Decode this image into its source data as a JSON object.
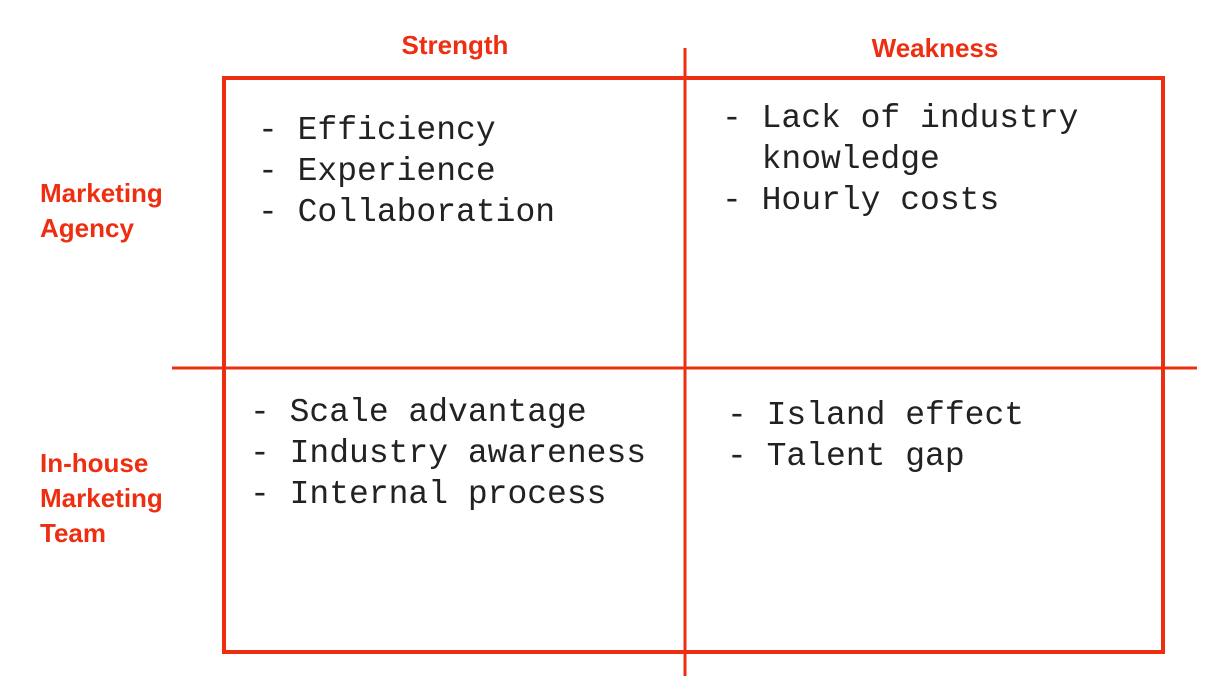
{
  "columns": [
    "Strength",
    "Weakness"
  ],
  "rows": [
    {
      "label": [
        "Marketing",
        "Agency"
      ],
      "cells": [
        [
          "- Efficiency",
          "- Experience",
          "- Collaboration"
        ],
        [
          "- Lack of industry knowledge",
          "- Hourly costs"
        ]
      ]
    },
    {
      "label": [
        "In-house",
        "Marketing",
        "Team"
      ],
      "cells": [
        [
          "- Scale advantage",
          "- Industry awareness",
          "- Internal process"
        ],
        [
          "- Island effect",
          "- Talent gap"
        ]
      ]
    }
  ]
}
